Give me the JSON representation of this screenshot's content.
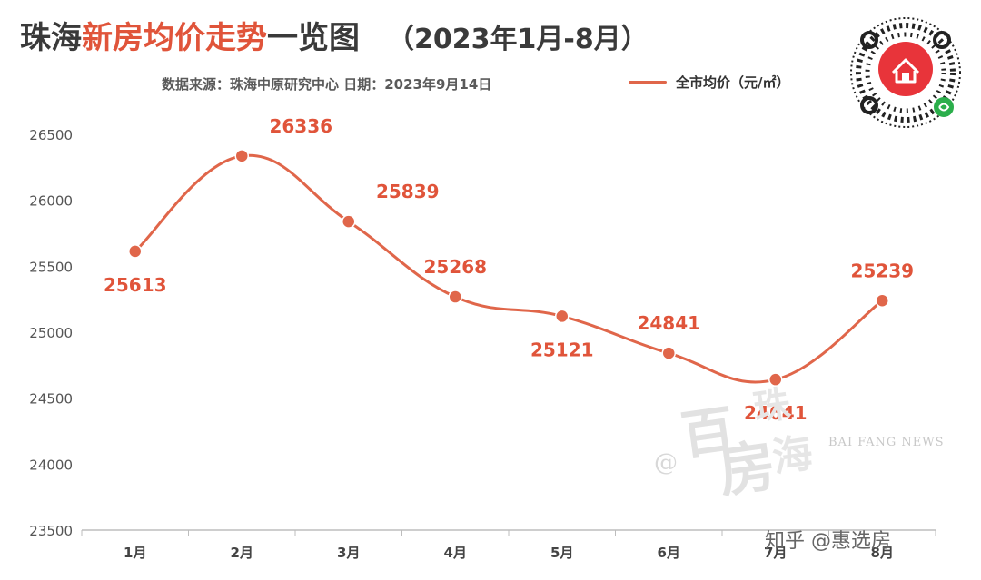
{
  "header": {
    "title_prefix": "珠海",
    "title_highlight": "新房均价走势",
    "title_suffix": "一览图",
    "title_period": "（2023年1月-8月）",
    "source": "数据来源：珠海中原研究中心  日期：2023年9月14日"
  },
  "watermark": {
    "brand_text": "BAI FANG NEWS",
    "logo_chars": "@百房珠海"
  },
  "credit": "知乎 @惠选房",
  "qr_code": {
    "icon": "mini-program-qr-code",
    "accent": "#e8343a"
  },
  "chart_data": {
    "type": "line",
    "smooth": true,
    "categories": [
      "1月",
      "2月",
      "3月",
      "4月",
      "5月",
      "6月",
      "7月",
      "8月"
    ],
    "series": [
      {
        "name": "全市均价（元/㎡）",
        "values": [
          25613,
          26336,
          25839,
          25268,
          25121,
          24841,
          24641,
          25239
        ],
        "color": "#e0664a"
      }
    ],
    "data_labels": [
      "25613",
      "26336",
      "25839",
      "25268",
      "25121",
      "24841",
      "24641",
      "25239"
    ],
    "y_ticks": [
      "23500",
      "24000",
      "24500",
      "25000",
      "25500",
      "26000",
      "26500"
    ],
    "ylim": [
      23500,
      26500
    ],
    "grid": false,
    "legend": "top-right",
    "label_color": "#e0543a"
  }
}
